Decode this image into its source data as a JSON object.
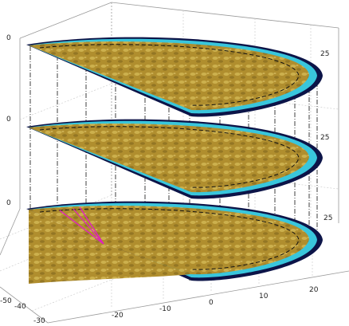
{
  "figure": {
    "colors": {
      "background": "#ffffff",
      "box_line": "#9a9a9a",
      "grid": "#c8c8c8",
      "field_base": "#b08e2e",
      "field_light": "#d9bf5a",
      "field_dark": "#6e5818",
      "edge_cyan": "#39c6dc",
      "edge_navy": "#0c1448",
      "dash_line": "#111111",
      "ray_magenta": "#e020c0"
    },
    "ticks": {
      "x_left": [
        "-40",
        "-30"
      ],
      "x_left_extra": "-50",
      "x_bottom": [
        "-20",
        "-10",
        "0",
        "10",
        "20"
      ],
      "z_left": [
        "0",
        "0",
        "0"
      ],
      "z_right": [
        "25",
        "25",
        "25"
      ]
    }
  }
}
